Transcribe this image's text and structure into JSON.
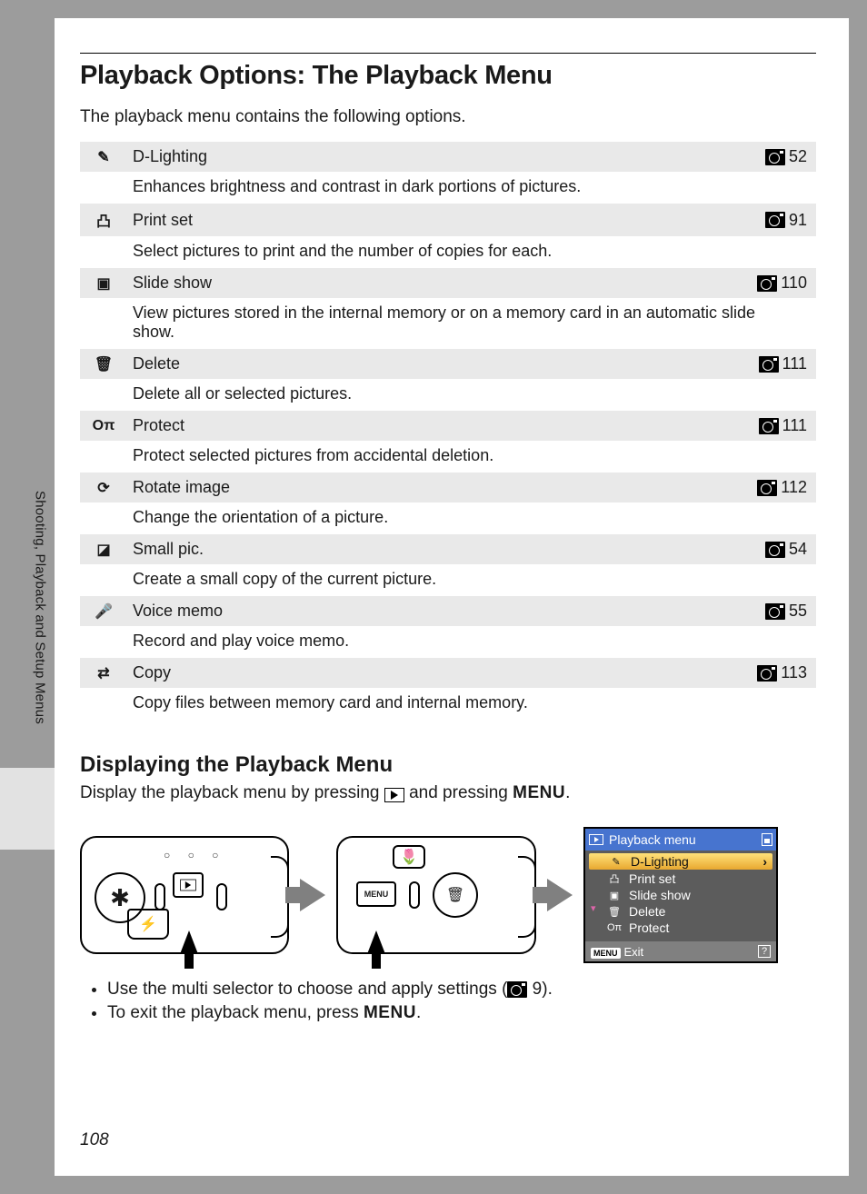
{
  "page_number": "108",
  "side_label": "Shooting, Playback and Setup Menus",
  "title": "Playback Options: The Playback Menu",
  "intro": "The playback menu contains the following options.",
  "options": [
    {
      "icon": "✎",
      "name": "D-Lighting",
      "page": "52",
      "desc": "Enhances brightness and contrast in dark portions of pictures."
    },
    {
      "icon": "凸",
      "name": "Print set",
      "page": "91",
      "desc": "Select pictures to print and the number of copies for each."
    },
    {
      "icon": "▣",
      "name": "Slide show",
      "page": "110",
      "desc": "View pictures stored in the internal memory or on a memory card in an automatic slide show."
    },
    {
      "icon": "🗑",
      "name": "Delete",
      "page": "111",
      "desc": "Delete all or selected pictures."
    },
    {
      "icon": "Oπ",
      "name": "Protect",
      "page": "111",
      "desc": "Protect selected pictures from accidental deletion."
    },
    {
      "icon": "⟳",
      "name": "Rotate image",
      "page": "112",
      "desc": "Change the orientation of a picture."
    },
    {
      "icon": "◪",
      "name": "Small pic.",
      "page": "54",
      "desc": "Create a small copy of the current picture."
    },
    {
      "icon": "🎤",
      "name": "Voice memo",
      "page": "55",
      "desc": "Record and play voice memo."
    },
    {
      "icon": "⇄",
      "name": "Copy",
      "page": "113",
      "desc": "Copy files between memory card and internal memory."
    }
  ],
  "subheading": "Displaying the Playback Menu",
  "display_sentence_prefix": "Display the playback menu by pressing ",
  "display_sentence_mid": " and pressing ",
  "display_sentence_end": ".",
  "menu_word": "MENU",
  "lcd": {
    "title": "Playback menu",
    "items": [
      {
        "icon": "✎",
        "label": "D-Lighting",
        "selected": true
      },
      {
        "icon": "凸",
        "label": "Print set"
      },
      {
        "icon": "▣",
        "label": "Slide show"
      },
      {
        "icon": "🗑",
        "label": "Delete"
      },
      {
        "icon": "Oπ",
        "label": "Protect"
      }
    ],
    "footer_menu": "MENU",
    "footer_exit": "Exit",
    "footer_help": "?"
  },
  "bullets_prefix_1": "Use the multi selector to choose and apply settings (",
  "bullets_refpage_1": " 9).",
  "bullets_2_pre": "To exit the playback menu, press ",
  "bullets_2_post": "."
}
